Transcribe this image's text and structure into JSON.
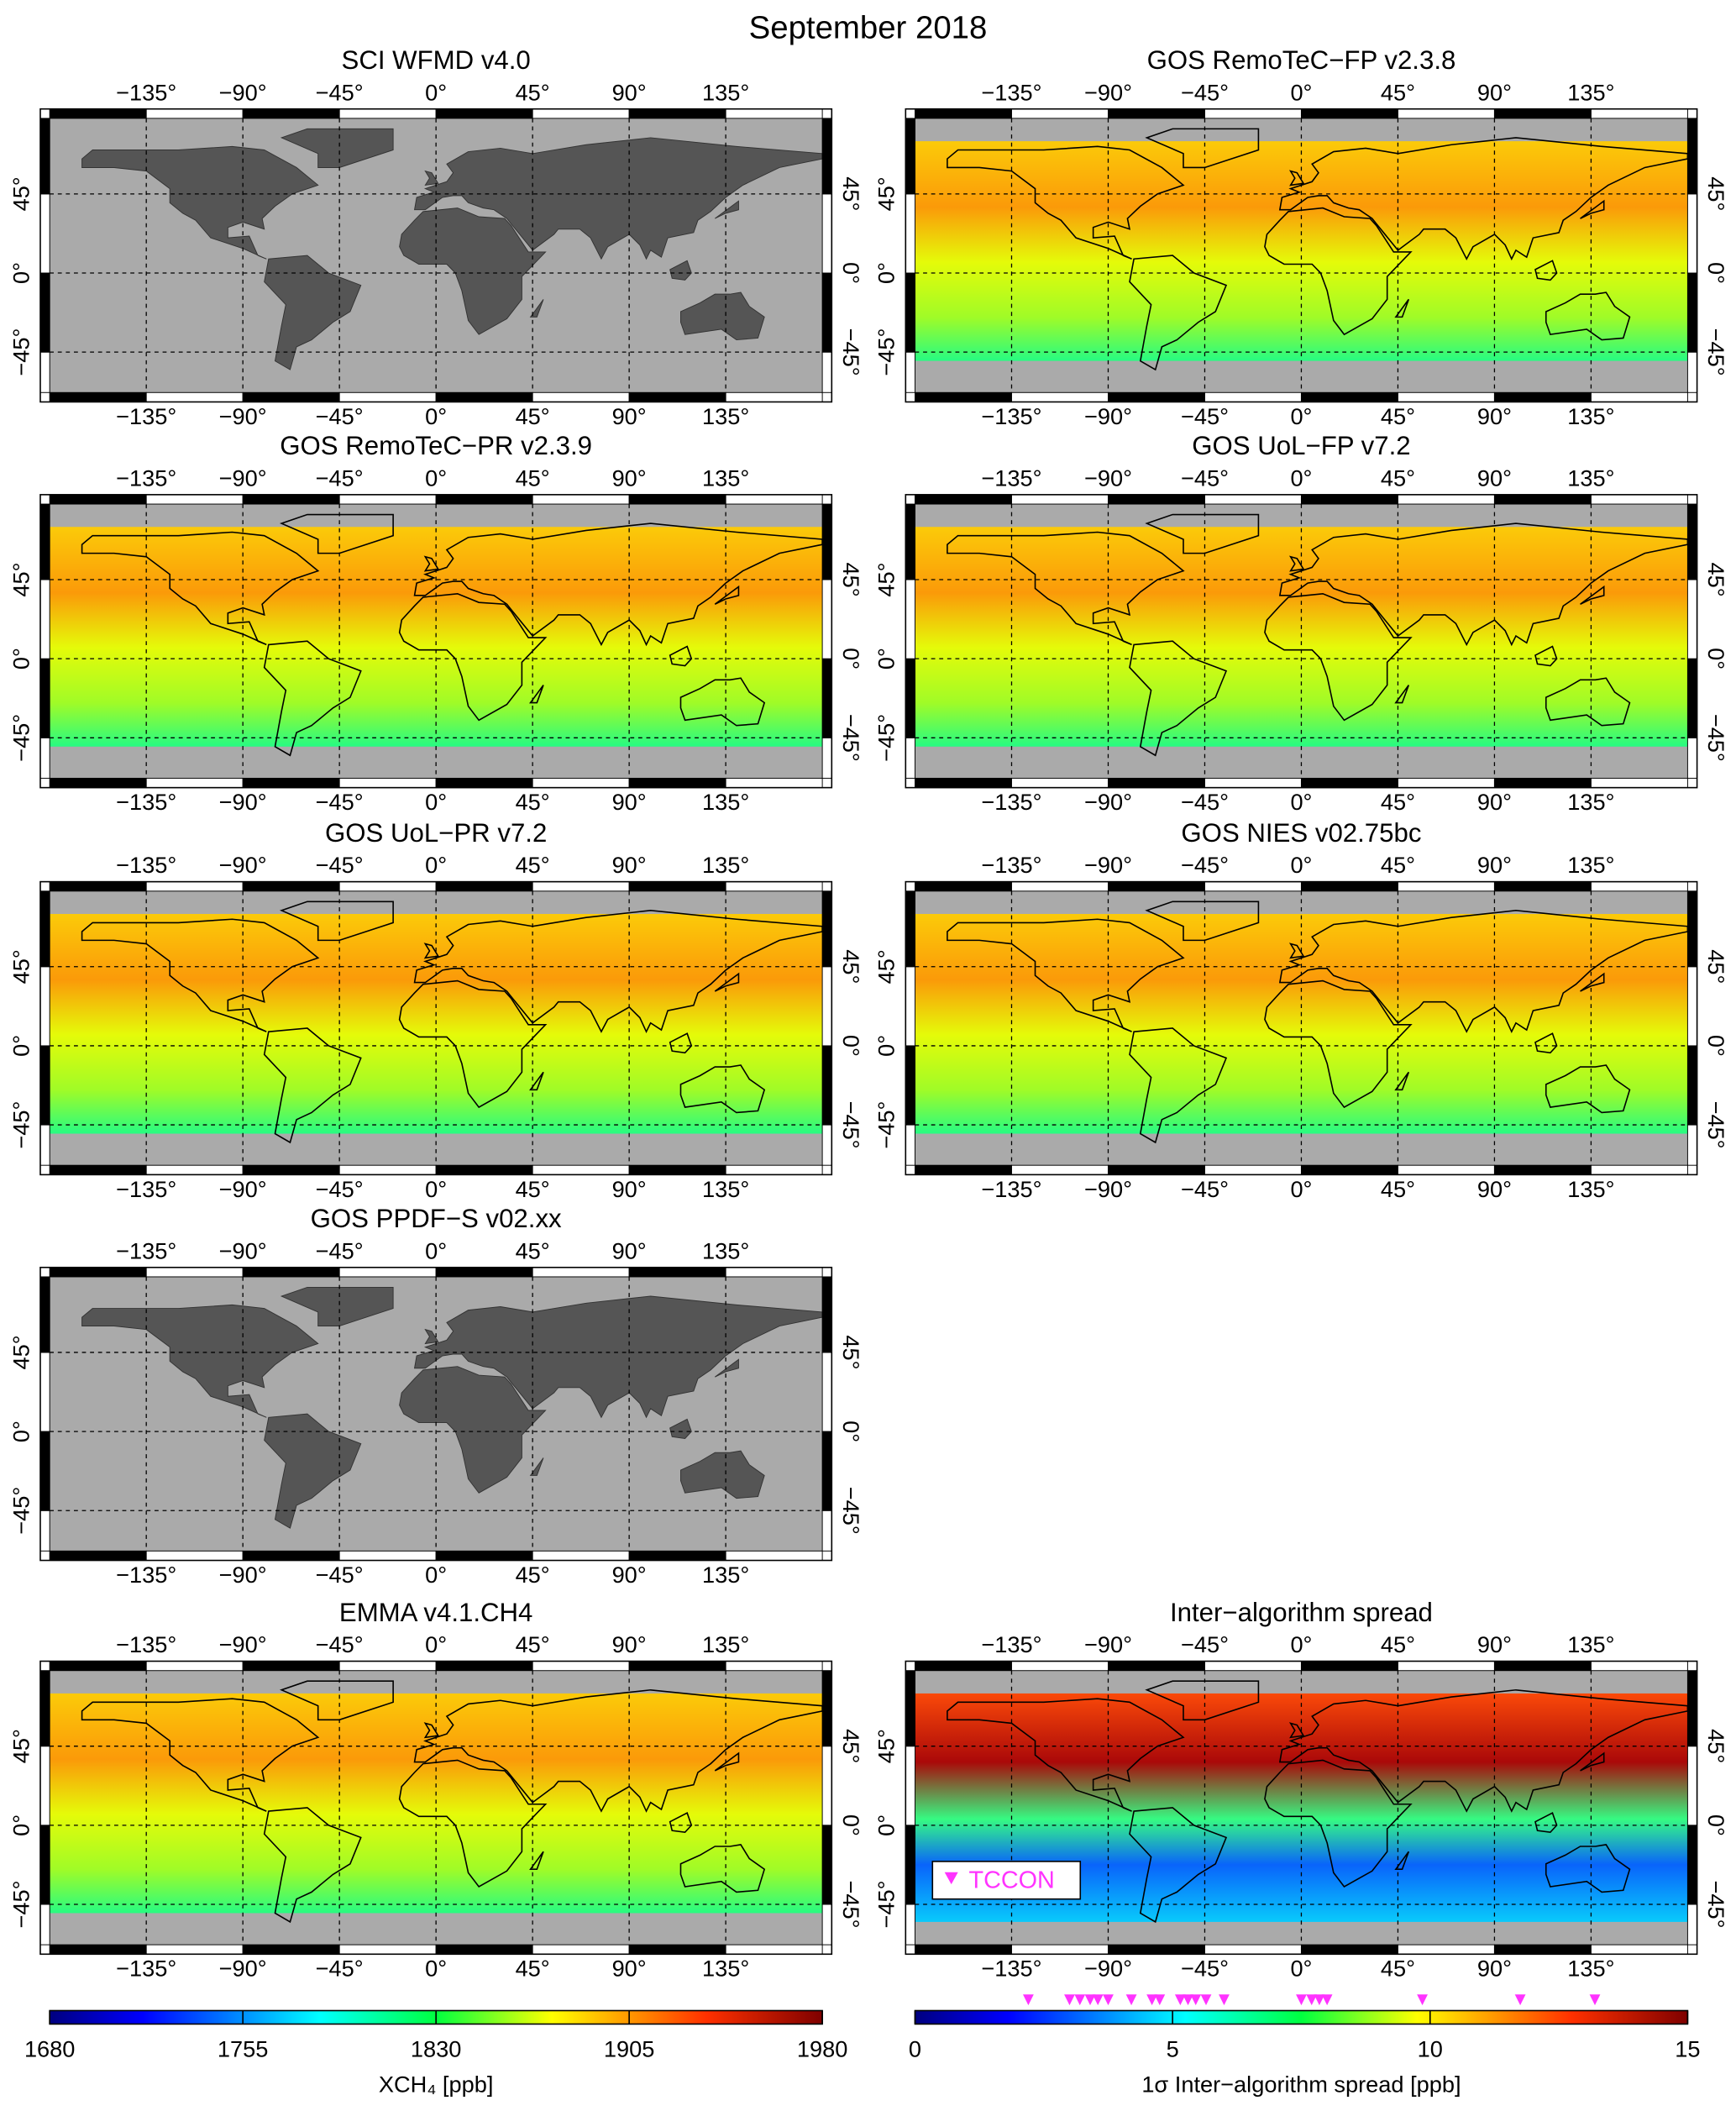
{
  "title": "September 2018",
  "panels": [
    {
      "title": "SCI WFMD v4.0"
    },
    {
      "title": "GOS RemoTeC−FP v2.3.8"
    },
    {
      "title": "GOS RemoTeC−PR v2.3.9"
    },
    {
      "title": "GOS UoL−FP v7.2"
    },
    {
      "title": "GOS UoL−PR v7.2"
    },
    {
      "title": "GOS NIES v02.75bc"
    },
    {
      "title": "GOS PPDF−S v02.xx"
    },
    {
      "title": "EMMA v4.1.CH4"
    },
    {
      "title": "Inter−algorithm spread"
    }
  ],
  "xlim": [
    -180,
    180
  ],
  "ylim": [
    -68,
    88
  ],
  "lon_ticks": [
    {
      "value": -135,
      "label": "−135°"
    },
    {
      "value": -90,
      "label": "−90°"
    },
    {
      "value": -45,
      "label": "−45°"
    },
    {
      "value": 0,
      "label": "0°"
    },
    {
      "value": 45,
      "label": "45°"
    },
    {
      "value": 90,
      "label": "90°"
    },
    {
      "value": 135,
      "label": "135°"
    }
  ],
  "lat_ticks": [
    {
      "value": -45,
      "label": "−45°"
    },
    {
      "value": 0,
      "label": "0°"
    },
    {
      "value": 45,
      "label": "45°"
    }
  ],
  "colorbars": [
    {
      "label": "XCH₄ [ppb]",
      "lim": [
        1680,
        1980
      ],
      "ticks": [
        1680,
        1755,
        1830,
        1905,
        1980
      ]
    },
    {
      "label": "1σ Inter−algorithm spread [ppb]",
      "lim": [
        0,
        15
      ],
      "ticks": [
        0,
        5,
        10,
        15
      ],
      "tccon": {
        "name": "TCCON",
        "color": "#ff33ff",
        "values": [
          2.2,
          3.0,
          3.2,
          3.4,
          3.55,
          3.75,
          4.2,
          4.6,
          4.75,
          5.15,
          5.3,
          5.45,
          5.65,
          6.0,
          7.5,
          7.7,
          7.85,
          8.0,
          9.85,
          11.75,
          13.2
        ]
      }
    }
  ]
}
